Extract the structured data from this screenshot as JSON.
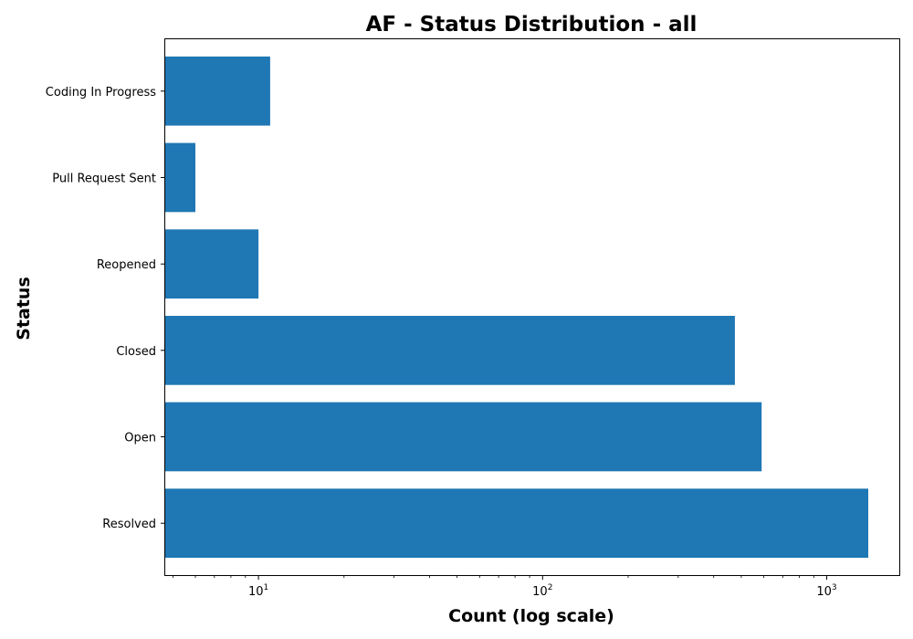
{
  "chart_data": {
    "type": "bar",
    "orientation": "horizontal",
    "title": "AF - Status Distribution - all",
    "xlabel": "Count (log scale)",
    "ylabel": "Status",
    "xscale": "log",
    "xlim": [
      4.7,
      1800
    ],
    "xticks": [
      {
        "value": 10,
        "base": "10",
        "exp": "1"
      },
      {
        "value": 100,
        "base": "10",
        "exp": "2"
      },
      {
        "value": 1000,
        "base": "10",
        "exp": "3"
      }
    ],
    "categories": [
      "Resolved",
      "Open",
      "Closed",
      "Reopened",
      "Pull Request Sent",
      "Coding In Progress"
    ],
    "values": [
      1400,
      590,
      475,
      10,
      6,
      11
    ],
    "bar_color": "#1f77b4",
    "grid": false,
    "legend": "none"
  }
}
